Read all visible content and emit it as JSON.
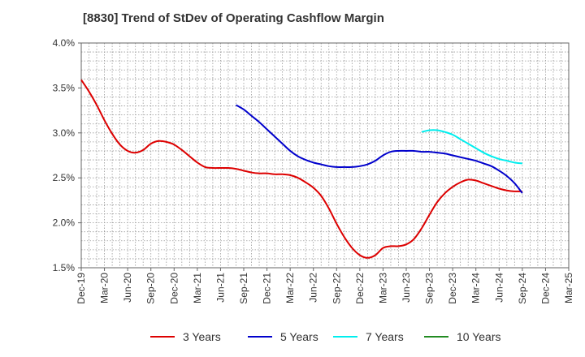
{
  "chart_data": {
    "type": "line",
    "title": "[8830]  Trend of StDev of Operating Cashflow Margin",
    "x_tick_labels": [
      "Dec-19",
      "Mar-20",
      "Jun-20",
      "Sep-20",
      "Dec-20",
      "Mar-21",
      "Jun-21",
      "Sep-21",
      "Dec-21",
      "Mar-22",
      "Jun-22",
      "Sep-22",
      "Dec-22",
      "Mar-23",
      "Jun-23",
      "Sep-23",
      "Dec-23",
      "Mar-24",
      "Jun-24",
      "Sep-24",
      "Dec-24",
      "Mar-25"
    ],
    "y_tick_labels": [
      "4.0%",
      "3.5%",
      "3.0%",
      "2.5%",
      "2.0%",
      "1.5%"
    ],
    "y_ticks": [
      4.0,
      3.5,
      3.0,
      2.5,
      2.0,
      1.5
    ],
    "ylim": [
      1.5,
      4.0
    ],
    "x_range_quarters": [
      0,
      21
    ],
    "grid": true,
    "legend_position": "bottom",
    "series": [
      {
        "name": "3 Years",
        "color": "#dd0000",
        "points": [
          [
            "Dec-19",
            3.59
          ],
          [
            "Jan-20",
            3.46
          ],
          [
            "Feb-20",
            3.31
          ],
          [
            "Mar-20",
            3.14
          ],
          [
            "Apr-20",
            2.99
          ],
          [
            "May-20",
            2.87
          ],
          [
            "Jun-20",
            2.8
          ],
          [
            "Jul-20",
            2.78
          ],
          [
            "Aug-20",
            2.81
          ],
          [
            "Sep-20",
            2.88
          ],
          [
            "Oct-20",
            2.91
          ],
          [
            "Nov-20",
            2.9
          ],
          [
            "Dec-20",
            2.87
          ],
          [
            "Jan-21",
            2.81
          ],
          [
            "Feb-21",
            2.74
          ],
          [
            "Mar-21",
            2.67
          ],
          [
            "Apr-21",
            2.62
          ],
          [
            "May-21",
            2.61
          ],
          [
            "Jun-21",
            2.61
          ],
          [
            "Jul-21",
            2.61
          ],
          [
            "Aug-21",
            2.6
          ],
          [
            "Sep-21",
            2.58
          ],
          [
            "Oct-21",
            2.56
          ],
          [
            "Nov-21",
            2.55
          ],
          [
            "Dec-21",
            2.55
          ],
          [
            "Jan-22",
            2.54
          ],
          [
            "Feb-22",
            2.54
          ],
          [
            "Mar-22",
            2.53
          ],
          [
            "Apr-22",
            2.5
          ],
          [
            "May-22",
            2.45
          ],
          [
            "Jun-22",
            2.39
          ],
          [
            "Jul-22",
            2.3
          ],
          [
            "Aug-22",
            2.16
          ],
          [
            "Sep-22",
            1.99
          ],
          [
            "Oct-22",
            1.84
          ],
          [
            "Nov-22",
            1.72
          ],
          [
            "Dec-22",
            1.64
          ],
          [
            "Jan-23",
            1.61
          ],
          [
            "Feb-23",
            1.64
          ],
          [
            "Mar-23",
            1.72
          ],
          [
            "Apr-23",
            1.74
          ],
          [
            "May-23",
            1.74
          ],
          [
            "Jun-23",
            1.76
          ],
          [
            "Jul-23",
            1.82
          ],
          [
            "Aug-23",
            1.94
          ],
          [
            "Sep-23",
            2.09
          ],
          [
            "Oct-23",
            2.23
          ],
          [
            "Nov-23",
            2.33
          ],
          [
            "Dec-23",
            2.4
          ],
          [
            "Jan-24",
            2.45
          ],
          [
            "Feb-24",
            2.48
          ],
          [
            "Mar-24",
            2.47
          ],
          [
            "Apr-24",
            2.44
          ],
          [
            "May-24",
            2.41
          ],
          [
            "Jun-24",
            2.38
          ],
          [
            "Jul-24",
            2.36
          ],
          [
            "Aug-24",
            2.35
          ],
          [
            "Sep-24",
            2.35
          ]
        ]
      },
      {
        "name": "5 Years",
        "color": "#0000cc",
        "points": [
          [
            "Aug-21",
            3.31
          ],
          [
            "Sep-21",
            3.26
          ],
          [
            "Oct-21",
            3.19
          ],
          [
            "Nov-21",
            3.12
          ],
          [
            "Dec-21",
            3.04
          ],
          [
            "Jan-22",
            2.96
          ],
          [
            "Feb-22",
            2.88
          ],
          [
            "Mar-22",
            2.8
          ],
          [
            "Apr-22",
            2.74
          ],
          [
            "May-22",
            2.7
          ],
          [
            "Jun-22",
            2.67
          ],
          [
            "Jul-22",
            2.65
          ],
          [
            "Aug-22",
            2.63
          ],
          [
            "Sep-22",
            2.62
          ],
          [
            "Oct-22",
            2.62
          ],
          [
            "Nov-22",
            2.62
          ],
          [
            "Dec-22",
            2.63
          ],
          [
            "Jan-23",
            2.65
          ],
          [
            "Feb-23",
            2.69
          ],
          [
            "Mar-23",
            2.75
          ],
          [
            "Apr-23",
            2.79
          ],
          [
            "May-23",
            2.8
          ],
          [
            "Jun-23",
            2.8
          ],
          [
            "Jul-23",
            2.8
          ],
          [
            "Aug-23",
            2.79
          ],
          [
            "Sep-23",
            2.79
          ],
          [
            "Oct-23",
            2.78
          ],
          [
            "Nov-23",
            2.77
          ],
          [
            "Dec-23",
            2.75
          ],
          [
            "Jan-24",
            2.73
          ],
          [
            "Feb-24",
            2.71
          ],
          [
            "Mar-24",
            2.69
          ],
          [
            "Apr-24",
            2.66
          ],
          [
            "May-24",
            2.63
          ],
          [
            "Jun-24",
            2.58
          ],
          [
            "Jul-24",
            2.52
          ],
          [
            "Aug-24",
            2.44
          ],
          [
            "Sep-24",
            2.33
          ]
        ]
      },
      {
        "name": "7 Years",
        "color": "#00eeee",
        "points": [
          [
            "Aug-23",
            3.01
          ],
          [
            "Sep-23",
            3.03
          ],
          [
            "Oct-23",
            3.03
          ],
          [
            "Nov-23",
            3.01
          ],
          [
            "Dec-23",
            2.98
          ],
          [
            "Jan-24",
            2.93
          ],
          [
            "Feb-24",
            2.88
          ],
          [
            "Mar-24",
            2.83
          ],
          [
            "Apr-24",
            2.78
          ],
          [
            "May-24",
            2.74
          ],
          [
            "Jun-24",
            2.71
          ],
          [
            "Jul-24",
            2.69
          ],
          [
            "Aug-24",
            2.67
          ],
          [
            "Sep-24",
            2.66
          ]
        ]
      },
      {
        "name": "10 Years",
        "color": "#228b22",
        "points": []
      }
    ]
  }
}
